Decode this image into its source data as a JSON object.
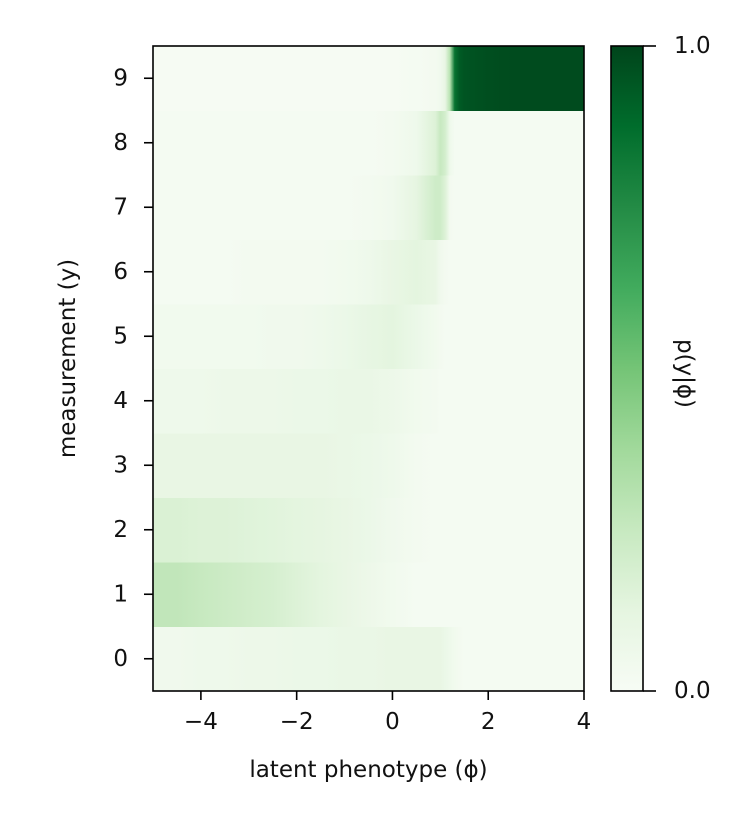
{
  "chart_data": {
    "type": "heatmap",
    "title": "",
    "xlabel": "latent phenotype (ϕ)",
    "ylabel": "measurement (y)",
    "xlim": [
      -5,
      4
    ],
    "ylim": [
      -0.5,
      9.5
    ],
    "xticks": [
      -4,
      -2,
      0,
      2,
      4
    ],
    "xtick_labels": [
      "−4",
      "−2",
      "0",
      "2",
      "4"
    ],
    "yticks": [
      0,
      1,
      2,
      3,
      4,
      5,
      6,
      7,
      8,
      9
    ],
    "ytick_labels": [
      "0",
      "1",
      "2",
      "3",
      "4",
      "5",
      "6",
      "7",
      "8",
      "9"
    ],
    "colormap": "Greens",
    "colorbar": {
      "label": "p(y|ϕ)",
      "range": [
        0.0,
        1.0
      ],
      "tick_labels": [
        "1.0",
        "0.0"
      ],
      "colors": [
        "#f7fcf5",
        "#e5f5e0",
        "#c7e9c0",
        "#a1d99b",
        "#74c476",
        "#41ab5d",
        "#238b45",
        "#006d2c",
        "#00441b"
      ]
    },
    "phi_grid": [
      -5,
      -4.5,
      -4,
      -3.5,
      -3,
      -2.5,
      -2,
      -1.5,
      -1,
      -0.5,
      0,
      0.5,
      0.9,
      1.0,
      1.1,
      1.2,
      1.3,
      1.4,
      1.5,
      2,
      2.5,
      3,
      3.5,
      4
    ],
    "rows": [
      {
        "y": 0,
        "p": [
          0.05,
          0.05,
          0.06,
          0.06,
          0.07,
          0.07,
          0.08,
          0.08,
          0.09,
          0.09,
          0.1,
          0.1,
          0.1,
          0.1,
          0.08,
          0.06,
          0.04,
          0.03,
          0.02,
          0.02,
          0.02,
          0.02,
          0.02,
          0.02
        ]
      },
      {
        "y": 1,
        "p": [
          0.27,
          0.27,
          0.25,
          0.23,
          0.21,
          0.19,
          0.16,
          0.13,
          0.1,
          0.07,
          0.04,
          0.02,
          0.02,
          0.02,
          0.02,
          0.02,
          0.02,
          0.02,
          0.02,
          0.02,
          0.02,
          0.02,
          0.02,
          0.02
        ]
      },
      {
        "y": 2,
        "p": [
          0.17,
          0.17,
          0.16,
          0.16,
          0.15,
          0.14,
          0.13,
          0.12,
          0.1,
          0.08,
          0.05,
          0.03,
          0.02,
          0.02,
          0.02,
          0.02,
          0.02,
          0.02,
          0.02,
          0.02,
          0.02,
          0.02,
          0.02,
          0.02
        ]
      },
      {
        "y": 3,
        "p": [
          0.1,
          0.1,
          0.1,
          0.1,
          0.1,
          0.1,
          0.1,
          0.1,
          0.09,
          0.08,
          0.06,
          0.03,
          0.02,
          0.02,
          0.02,
          0.02,
          0.02,
          0.02,
          0.02,
          0.02,
          0.02,
          0.02,
          0.02,
          0.02
        ]
      },
      {
        "y": 4,
        "p": [
          0.06,
          0.06,
          0.06,
          0.07,
          0.07,
          0.07,
          0.08,
          0.08,
          0.09,
          0.09,
          0.07,
          0.04,
          0.03,
          0.02,
          0.02,
          0.02,
          0.02,
          0.02,
          0.02,
          0.02,
          0.02,
          0.02,
          0.02,
          0.02
        ]
      },
      {
        "y": 5,
        "p": [
          0.04,
          0.04,
          0.04,
          0.04,
          0.04,
          0.05,
          0.05,
          0.06,
          0.08,
          0.11,
          0.13,
          0.08,
          0.04,
          0.03,
          0.02,
          0.02,
          0.02,
          0.02,
          0.02,
          0.02,
          0.02,
          0.02,
          0.02,
          0.02
        ]
      },
      {
        "y": 6,
        "p": [
          0.02,
          0.02,
          0.02,
          0.02,
          0.03,
          0.03,
          0.03,
          0.03,
          0.04,
          0.06,
          0.1,
          0.13,
          0.1,
          0.05,
          0.03,
          0.02,
          0.02,
          0.02,
          0.02,
          0.02,
          0.02,
          0.02,
          0.02,
          0.02
        ]
      },
      {
        "y": 7,
        "p": [
          0.02,
          0.02,
          0.02,
          0.02,
          0.02,
          0.02,
          0.02,
          0.02,
          0.02,
          0.03,
          0.05,
          0.12,
          0.22,
          0.22,
          0.16,
          0.03,
          0.02,
          0.02,
          0.02,
          0.02,
          0.02,
          0.02,
          0.02,
          0.02
        ]
      },
      {
        "y": 8,
        "p": [
          0.02,
          0.02,
          0.02,
          0.02,
          0.02,
          0.02,
          0.02,
          0.02,
          0.02,
          0.02,
          0.03,
          0.06,
          0.16,
          0.25,
          0.2,
          0.06,
          0.02,
          0.02,
          0.02,
          0.02,
          0.02,
          0.02,
          0.02,
          0.02
        ]
      },
      {
        "y": 9,
        "p": [
          0.01,
          0.01,
          0.01,
          0.01,
          0.01,
          0.01,
          0.01,
          0.01,
          0.01,
          0.01,
          0.01,
          0.02,
          0.03,
          0.05,
          0.1,
          0.3,
          0.85,
          0.93,
          0.95,
          0.97,
          0.98,
          0.98,
          0.98,
          0.98
        ]
      }
    ]
  }
}
